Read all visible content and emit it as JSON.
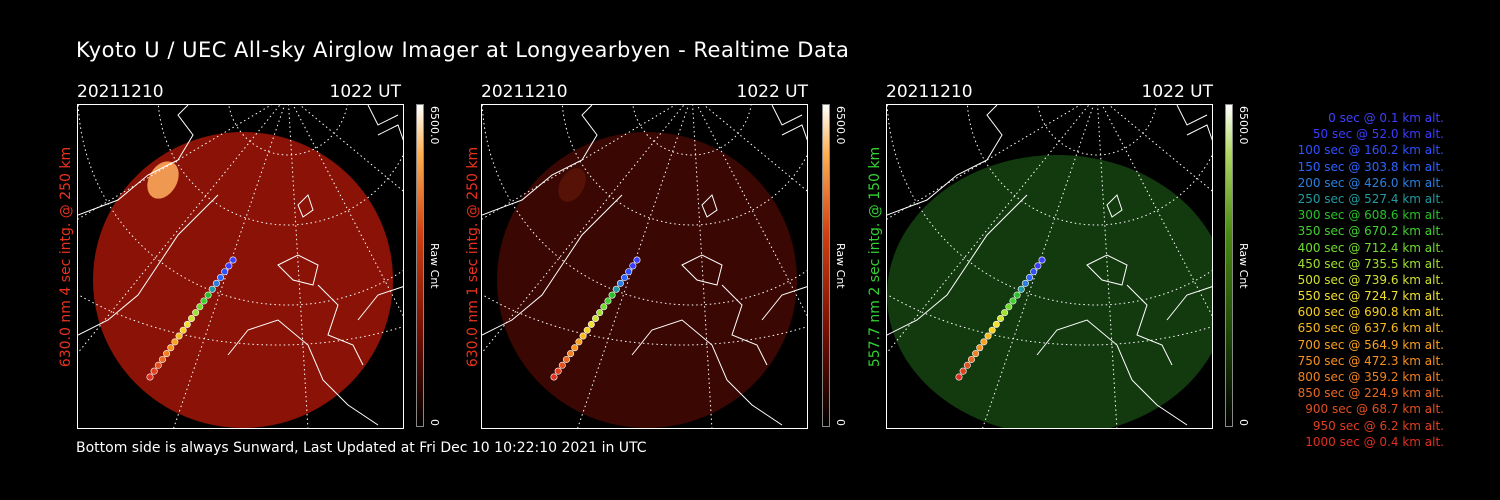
{
  "title": "Kyoto U / UEC All-sky Airglow Imager at Longyearbyen - Realtime Data",
  "footer": "Bottom side is always Sunward, Last Updated at Fri Dec 10 10:22:10 2021 in UTC",
  "panels": [
    {
      "date": "20211210",
      "time": "1022 UT",
      "side_label": "630.0 nm 4 sec intg. @ 250 km",
      "side_color": "#e8321e",
      "cbar_max": "6500.0",
      "cbar_unit": "Raw Cnt",
      "cbar_min": "0",
      "image_color": "#8a1206",
      "image_opacity": 1.0
    },
    {
      "date": "20211210",
      "time": "1022 UT",
      "side_label": "630.0 nm 1 sec intg. @ 250 km",
      "side_color": "#e8321e",
      "cbar_max": "6500.0",
      "cbar_unit": "Raw Cnt",
      "cbar_min": "0",
      "image_color": "#3a0703",
      "image_opacity": 1.0
    },
    {
      "date": "20211210",
      "time": "1022 UT",
      "side_label": "557.7 nm 2 sec intg. @ 150 km",
      "side_color": "#32d232",
      "cbar_max": "6500.0",
      "cbar_unit": "Raw Cnt",
      "cbar_min": "0",
      "image_color": "#123a0e",
      "image_opacity": 1.0
    }
  ],
  "legend": [
    {
      "text": "0 sec @    0.1 km alt.",
      "color": "#4040ff"
    },
    {
      "text": "50 sec @   52.0 km alt.",
      "color": "#3c3cff"
    },
    {
      "text": "100 sec @  160.2 km alt.",
      "color": "#3050ff"
    },
    {
      "text": "150 sec @  303.8 km alt.",
      "color": "#2c64ff"
    },
    {
      "text": "200 sec @  426.0 km alt.",
      "color": "#2a80e0"
    },
    {
      "text": "250 sec @  527.4 km alt.",
      "color": "#209aa0"
    },
    {
      "text": "300 sec @  608.6 km alt.",
      "color": "#28c028"
    },
    {
      "text": "350 sec @  670.2 km alt.",
      "color": "#40d030"
    },
    {
      "text": "400 sec @  712.4 km alt.",
      "color": "#70dc30"
    },
    {
      "text": "450 sec @  735.5 km alt.",
      "color": "#a0e030"
    },
    {
      "text": "500 sec @  739.6 km alt.",
      "color": "#d0e030"
    },
    {
      "text": "550 sec @  724.7 km alt.",
      "color": "#f0e030"
    },
    {
      "text": "600 sec @  690.8 km alt.",
      "color": "#f8d020"
    },
    {
      "text": "650 sec @  637.6 km alt.",
      "color": "#f8b820"
    },
    {
      "text": "700 sec @  564.9 km alt.",
      "color": "#f8a020"
    },
    {
      "text": "750 sec @  472.3 km alt.",
      "color": "#f89020"
    },
    {
      "text": "800 sec @  359.2 km alt.",
      "color": "#f08020"
    },
    {
      "text": "850 sec @  224.9 km alt.",
      "color": "#e86820"
    },
    {
      "text": "900 sec @   68.7 km alt.",
      "color": "#e05020"
    },
    {
      "text": "950 sec @    6.2 km alt.",
      "color": "#e04020"
    },
    {
      "text": "1000 sec @    0.4 km alt.",
      "color": "#e03020"
    }
  ]
}
